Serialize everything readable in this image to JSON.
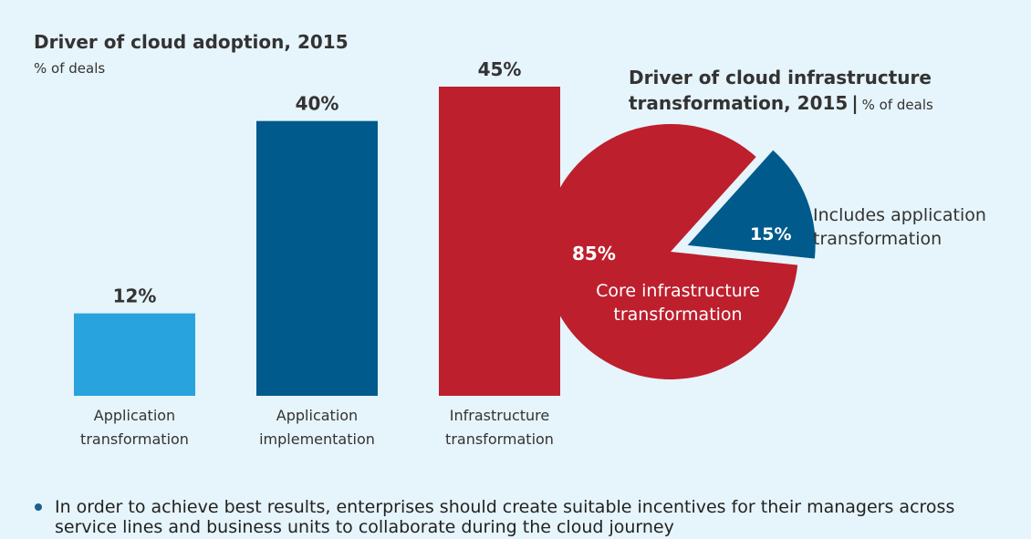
{
  "panel_bg": "#e6f4fb",
  "chart_data": [
    {
      "type": "bar",
      "title": "Driver of cloud adoption, 2015",
      "subtitle": "% of deals",
      "categories": [
        [
          "Application",
          "transformation"
        ],
        [
          "Application",
          "implementation"
        ],
        [
          "Infrastructure",
          "transformation"
        ]
      ],
      "values": [
        12,
        40,
        45
      ],
      "value_labels": [
        "12%",
        "40%",
        "45%"
      ],
      "colors": [
        "#29a3dd",
        "#005a8c",
        "#bd1f2d"
      ],
      "ylim": [
        0,
        45
      ],
      "grid": false
    },
    {
      "type": "pie",
      "title_line1": "Driver of cloud infrastructure",
      "title_line2": "transformation, 2015",
      "title_separator": "|",
      "title_unit": "% of deals",
      "slices": [
        {
          "value": 85,
          "value_label": "85%",
          "label": [
            "Core infrastructure",
            "transformation"
          ],
          "color": "#bd1f2d",
          "exploded": false
        },
        {
          "value": 15,
          "value_label": "15%",
          "label": [
            "Includes application",
            "transformation"
          ],
          "color": "#005a8c",
          "exploded": true
        }
      ]
    }
  ],
  "footer": {
    "text": "In order to achieve best results, enterprises should create suitable incentives for their managers across service lines and business units to collaborate during the cloud journey"
  }
}
